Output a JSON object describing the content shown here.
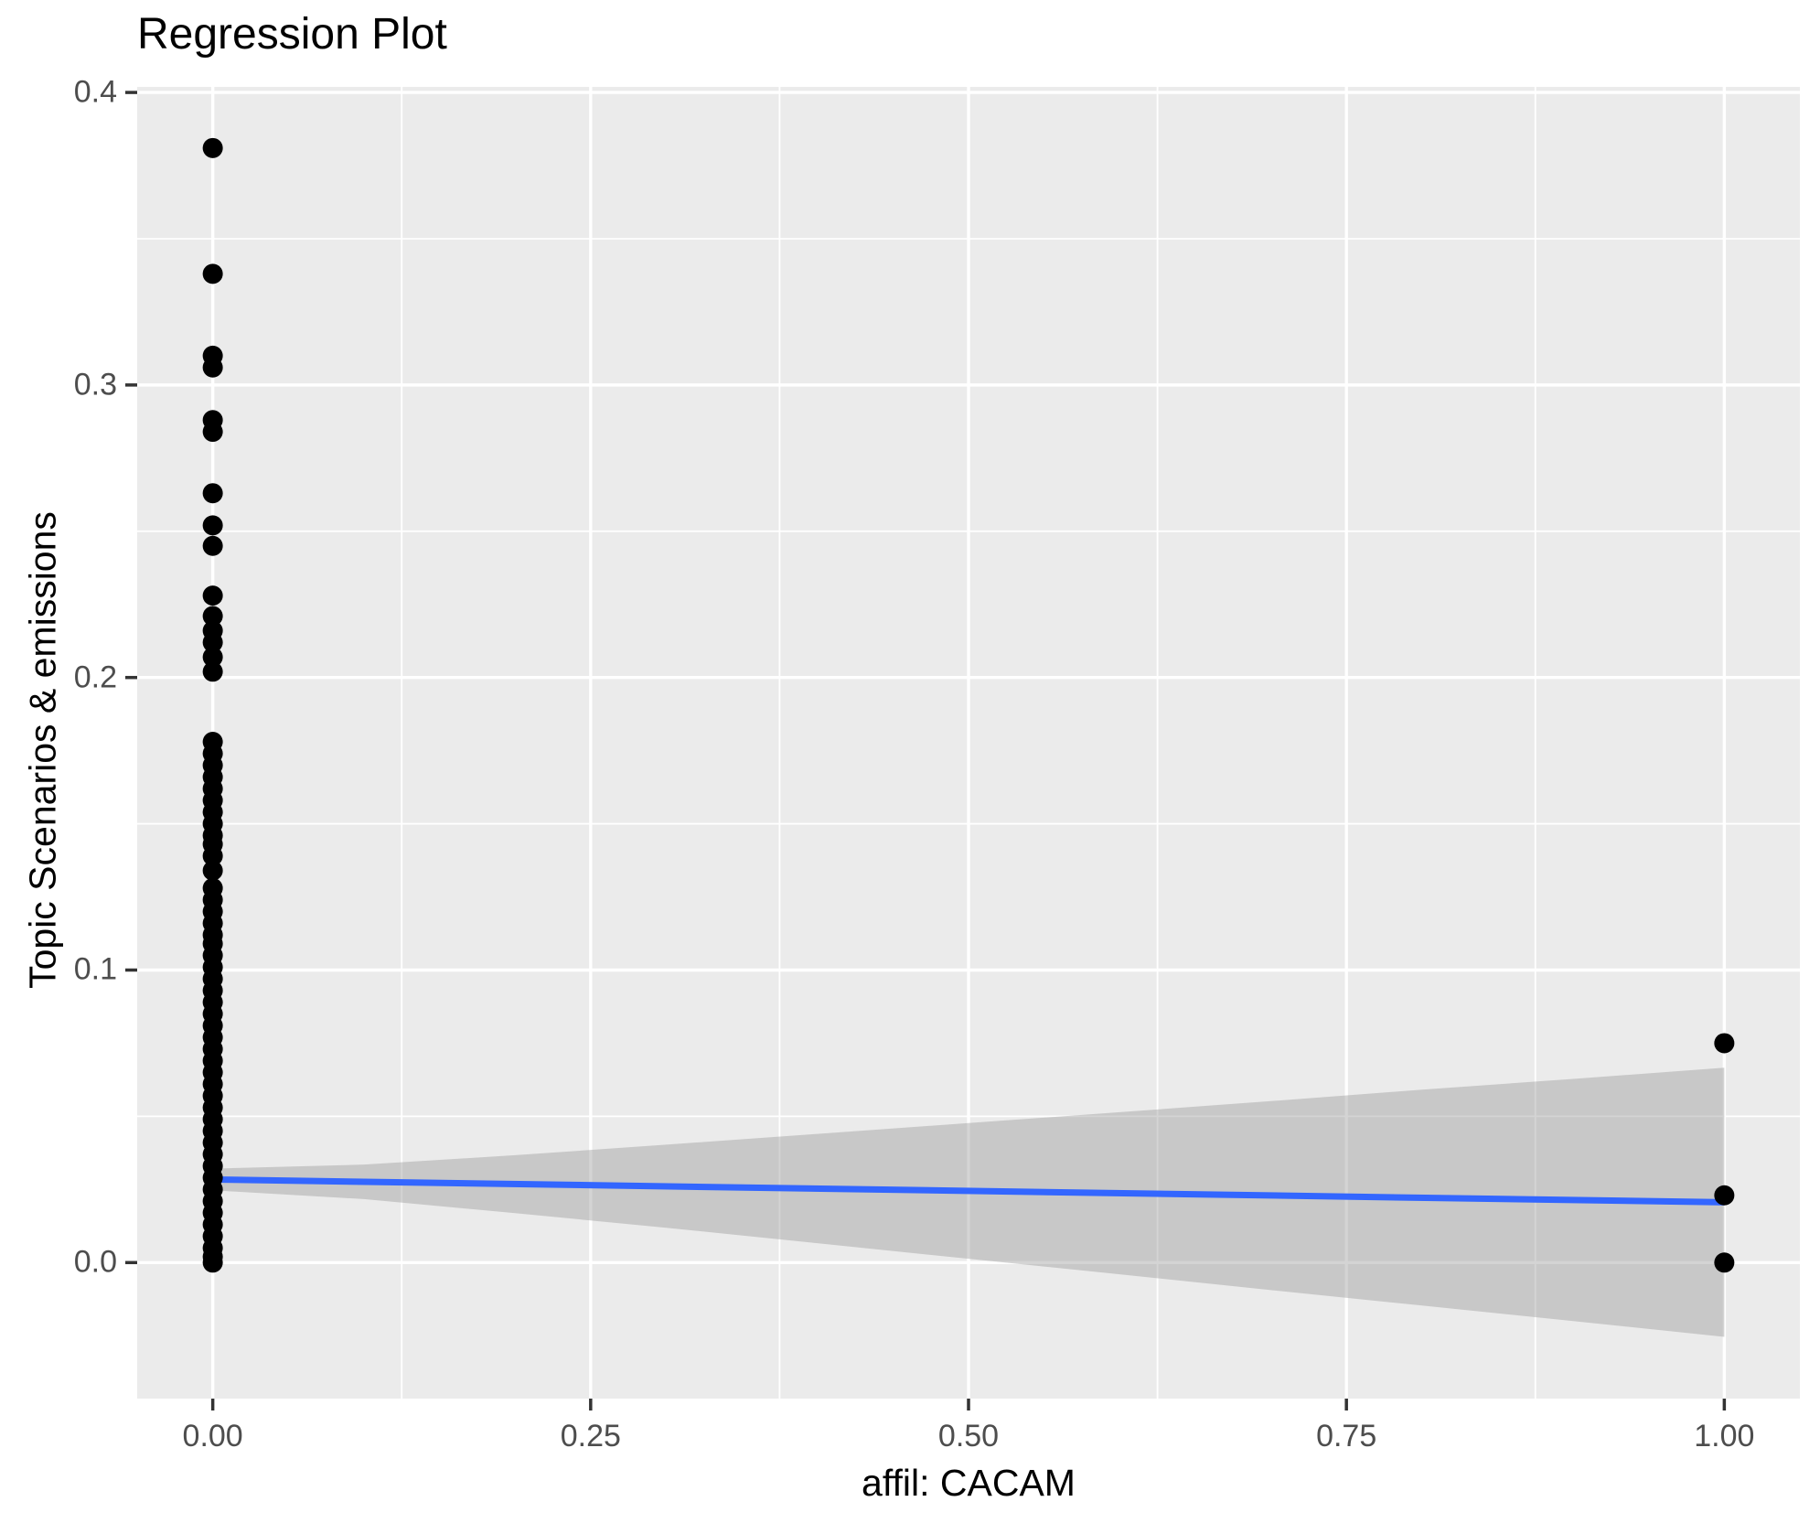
{
  "chart_data": {
    "type": "scatter",
    "title": "Regression Plot",
    "xlabel": "affil: CACAM",
    "ylabel": "Topic Scenarios & emissions",
    "xlim": [
      -0.05,
      1.05
    ],
    "ylim": [
      -0.0465,
      0.4019
    ],
    "grid": true,
    "legend": "none",
    "x_ticks": {
      "values": [
        0,
        0.25,
        0.5,
        0.75,
        1
      ],
      "labels": [
        "0.00",
        "0.25",
        "0.50",
        "0.75",
        "1.00"
      ]
    },
    "y_ticks": {
      "values": [
        0,
        0.1,
        0.2,
        0.3,
        0.4
      ],
      "labels": [
        "0.0",
        "0.1",
        "0.2",
        "0.3",
        "0.4"
      ]
    },
    "x_minor_ticks": [
      0.125,
      0.375,
      0.625,
      0.875
    ],
    "y_minor_ticks": [
      0.05,
      0.15,
      0.25,
      0.35
    ],
    "points": [
      [
        0,
        0.381
      ],
      [
        0,
        0.338
      ],
      [
        0,
        0.31
      ],
      [
        0,
        0.306
      ],
      [
        0,
        0.288
      ],
      [
        0,
        0.284
      ],
      [
        0,
        0.263
      ],
      [
        0,
        0.252
      ],
      [
        0,
        0.245
      ],
      [
        0,
        0.228
      ],
      [
        0,
        0.221
      ],
      [
        0,
        0.216
      ],
      [
        0,
        0.212
      ],
      [
        0,
        0.207
      ],
      [
        0,
        0.202
      ],
      [
        0,
        0.178
      ],
      [
        0,
        0.174
      ],
      [
        0,
        0.17
      ],
      [
        0,
        0.166
      ],
      [
        0,
        0.162
      ],
      [
        0,
        0.158
      ],
      [
        0,
        0.154
      ],
      [
        0,
        0.15
      ],
      [
        0,
        0.146
      ],
      [
        0,
        0.143
      ],
      [
        0,
        0.139
      ],
      [
        0,
        0.134
      ],
      [
        0,
        0.128
      ],
      [
        0,
        0.124
      ],
      [
        0,
        0.12
      ],
      [
        0,
        0.116
      ],
      [
        0,
        0.112
      ],
      [
        0,
        0.109
      ],
      [
        0,
        0.105
      ],
      [
        0,
        0.101
      ],
      [
        0,
        0.097
      ],
      [
        0,
        0.093
      ],
      [
        0,
        0.089
      ],
      [
        0,
        0.085
      ],
      [
        0,
        0.081
      ],
      [
        0,
        0.077
      ],
      [
        0,
        0.073
      ],
      [
        0,
        0.069
      ],
      [
        0,
        0.065
      ],
      [
        0,
        0.061
      ],
      [
        0,
        0.057
      ],
      [
        0,
        0.053
      ],
      [
        0,
        0.049
      ],
      [
        0,
        0.045
      ],
      [
        0,
        0.041
      ],
      [
        0,
        0.037
      ],
      [
        0,
        0.033
      ],
      [
        0,
        0.029
      ],
      [
        0,
        0.025
      ],
      [
        0,
        0.021
      ],
      [
        0,
        0.017
      ],
      [
        0,
        0.013
      ],
      [
        0,
        0.009
      ],
      [
        0,
        0.005
      ],
      [
        0,
        0.002
      ],
      [
        0,
        0.0
      ],
      [
        1,
        0.075
      ],
      [
        1,
        0.023
      ],
      [
        1,
        0.0
      ]
    ],
    "regression_line": {
      "x0": 0,
      "y0": 0.0284,
      "x1": 1,
      "y1": 0.0206
    },
    "ci_ribbon": {
      "x": [
        0,
        0.1,
        0.2,
        0.3,
        0.4,
        0.5,
        0.6,
        0.7,
        0.8,
        0.9,
        1.0
      ],
      "upper": [
        0.0321,
        0.0335,
        0.0367,
        0.0403,
        0.044,
        0.0477,
        0.0514,
        0.0552,
        0.0591,
        0.0628,
        0.0666
      ],
      "lower": [
        0.0247,
        0.0217,
        0.0169,
        0.0119,
        0.0066,
        0.0013,
        -0.004,
        -0.0094,
        -0.0147,
        -0.02,
        -0.0254
      ]
    },
    "colors": {
      "panel_background": "#EBEBEB",
      "gridline": "#FFFFFF",
      "point": "#000000",
      "regression_line": "#3366FF",
      "ci_ribbon_fill": "#999999",
      "ci_ribbon_opacity": 0.42,
      "tick_mark": "#333333",
      "tick_label": "#4D4D4D",
      "title_text": "#000000"
    }
  }
}
